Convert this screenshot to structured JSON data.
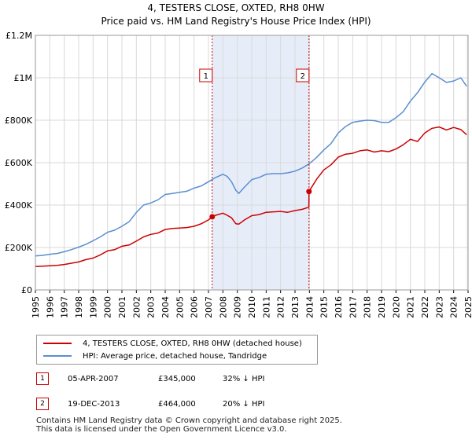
{
  "header": {
    "title_line1": "4, TESTERS CLOSE, OXTED, RH8 0HW",
    "title_line2": "Price paid vs. HM Land Registry's House Price Index (HPI)"
  },
  "colors": {
    "property": "#cc0000",
    "hpi": "#5b8fd0",
    "shade": "#e6edf9",
    "grid": "#d9d9d9"
  },
  "chart_data": {
    "type": "line",
    "title": "Price paid vs. HM Land Registry's House Price Index (HPI)",
    "xlabel": "",
    "ylabel": "",
    "xlim": [
      1995,
      2025
    ],
    "ylim": [
      0,
      1200000
    ],
    "y_ticks": [
      {
        "value": 0,
        "label": "£0"
      },
      {
        "value": 200000,
        "label": "£200K"
      },
      {
        "value": 400000,
        "label": "£400K"
      },
      {
        "value": 600000,
        "label": "£600K"
      },
      {
        "value": 800000,
        "label": "£800K"
      },
      {
        "value": 1000000,
        "label": "£1M"
      },
      {
        "value": 1200000,
        "label": "£1.2M"
      }
    ],
    "x_ticks": [
      1995,
      1996,
      1997,
      1998,
      1999,
      2000,
      2001,
      2002,
      2003,
      2004,
      2005,
      2006,
      2007,
      2008,
      2009,
      2010,
      2011,
      2012,
      2013,
      2014,
      2015,
      2016,
      2017,
      2018,
      2019,
      2020,
      2021,
      2022,
      2023,
      2024,
      2025
    ],
    "grid": true,
    "shaded_period": [
      2007.26,
      2013.97
    ],
    "series": [
      {
        "name": "4, TESTERS CLOSE, OXTED, RH8 0HW (detached house)",
        "color": "#cc0000",
        "x": [
          1995.0,
          1995.5,
          1996.0,
          1996.5,
          1997.0,
          1997.5,
          1998.0,
          1998.5,
          1999.0,
          1999.5,
          2000.0,
          2000.5,
          2001.0,
          2001.5,
          2002.0,
          2002.5,
          2003.0,
          2003.5,
          2004.0,
          2004.5,
          2005.0,
          2005.5,
          2006.0,
          2006.5,
          2007.0,
          2007.26,
          2007.5,
          2008.0,
          2008.3,
          2008.6,
          2008.9,
          2009.1,
          2009.5,
          2010.0,
          2010.5,
          2011.0,
          2011.5,
          2012.0,
          2012.5,
          2013.0,
          2013.5,
          2013.96,
          2013.97,
          2014.5,
          2015.0,
          2015.5,
          2016.0,
          2016.5,
          2017.0,
          2017.5,
          2018.0,
          2018.5,
          2019.0,
          2019.5,
          2020.0,
          2020.5,
          2021.0,
          2021.5,
          2022.0,
          2022.5,
          2023.0,
          2023.5,
          2024.0,
          2024.5,
          2024.9
        ],
        "values": [
          110000,
          112000,
          114000,
          116000,
          120000,
          126000,
          132000,
          143000,
          150000,
          165000,
          184000,
          190000,
          206000,
          212000,
          230000,
          250000,
          262000,
          268000,
          285000,
          290000,
          292000,
          294000,
          300000,
          312000,
          330000,
          345000,
          352000,
          362000,
          352000,
          340000,
          312000,
          310000,
          330000,
          350000,
          355000,
          366000,
          368000,
          370000,
          366000,
          374000,
          380000,
          390000,
          464000,
          522000,
          566000,
          590000,
          626000,
          640000,
          644000,
          656000,
          660000,
          650000,
          656000,
          652000,
          664000,
          684000,
          710000,
          700000,
          740000,
          762000,
          768000,
          754000,
          766000,
          756000,
          732000
        ]
      },
      {
        "name": "HPI: Average price, detached house, Tandridge",
        "color": "#5b8fd0",
        "x": [
          1995.0,
          1995.5,
          1996.0,
          1996.5,
          1997.0,
          1997.5,
          1998.0,
          1998.5,
          1999.0,
          1999.5,
          2000.0,
          2000.5,
          2001.0,
          2001.5,
          2002.0,
          2002.5,
          2003.0,
          2003.5,
          2004.0,
          2004.5,
          2005.0,
          2005.5,
          2006.0,
          2006.5,
          2007.0,
          2007.5,
          2008.0,
          2008.3,
          2008.6,
          2008.9,
          2009.1,
          2009.5,
          2010.0,
          2010.5,
          2011.0,
          2011.5,
          2012.0,
          2012.5,
          2013.0,
          2013.5,
          2014.0,
          2014.5,
          2015.0,
          2015.5,
          2016.0,
          2016.5,
          2017.0,
          2017.5,
          2018.0,
          2018.5,
          2019.0,
          2019.5,
          2020.0,
          2020.5,
          2021.0,
          2021.5,
          2022.0,
          2022.5,
          2023.0,
          2023.5,
          2024.0,
          2024.5,
          2024.9
        ],
        "values": [
          160000,
          163000,
          168000,
          172000,
          180000,
          190000,
          202000,
          215000,
          232000,
          250000,
          272000,
          282000,
          300000,
          322000,
          365000,
          400000,
          410000,
          425000,
          450000,
          455000,
          460000,
          465000,
          480000,
          490000,
          510000,
          530000,
          545000,
          535000,
          510000,
          470000,
          455000,
          485000,
          520000,
          530000,
          545000,
          548000,
          548000,
          552000,
          560000,
          575000,
          595000,
          625000,
          660000,
          690000,
          740000,
          770000,
          790000,
          796000,
          800000,
          798000,
          790000,
          790000,
          812000,
          840000,
          890000,
          930000,
          980000,
          1020000,
          1000000,
          978000,
          985000,
          1000000,
          960000
        ]
      }
    ],
    "annotations": [
      {
        "label": "1",
        "x": 2007.26,
        "value": 345000
      },
      {
        "label": "2",
        "x": 2013.97,
        "value": 464000
      }
    ]
  },
  "legend": {
    "items": [
      {
        "label": "4, TESTERS CLOSE, OXTED, RH8 0HW (detached house)"
      },
      {
        "label": "HPI: Average price, detached house, Tandridge"
      }
    ]
  },
  "transactions": [
    {
      "num": "1",
      "date": "05-APR-2007",
      "price": "£345,000",
      "delta": "32% ↓ HPI"
    },
    {
      "num": "2",
      "date": "19-DEC-2013",
      "price": "£464,000",
      "delta": "20% ↓ HPI"
    }
  ],
  "footer": {
    "line1": "Contains HM Land Registry data © Crown copyright and database right 2025.",
    "line2": "This data is licensed under the Open Government Licence v3.0."
  }
}
